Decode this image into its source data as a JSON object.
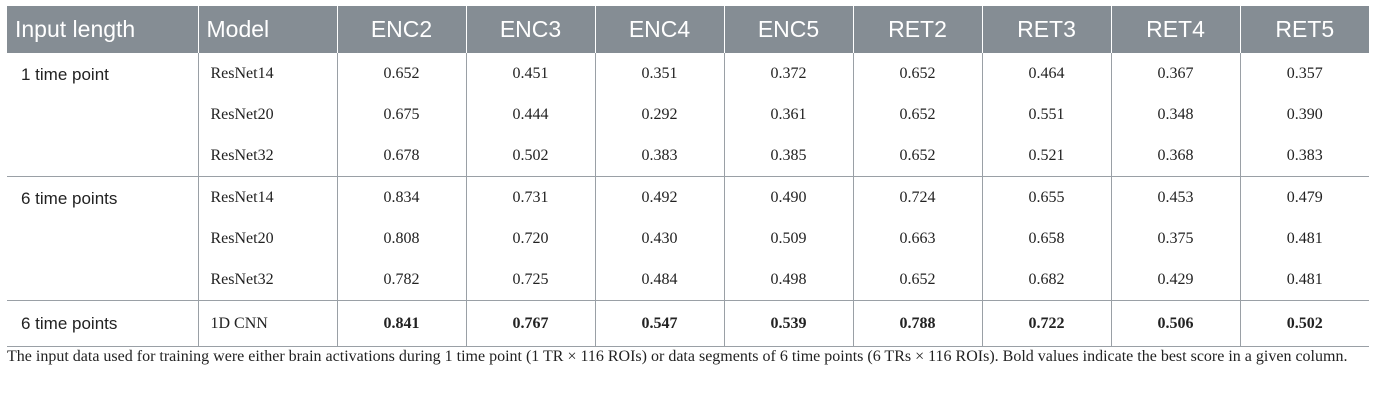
{
  "table": {
    "headers": [
      "Input length",
      "Model",
      "ENC2",
      "ENC3",
      "ENC4",
      "ENC5",
      "RET2",
      "RET3",
      "RET4",
      "RET5"
    ],
    "groups": [
      {
        "label": "1 time point",
        "rows": [
          {
            "model": "ResNet14",
            "values": [
              "0.652",
              "0.451",
              "0.351",
              "0.372",
              "0.652",
              "0.464",
              "0.367",
              "0.357"
            ]
          },
          {
            "model": "ResNet20",
            "values": [
              "0.675",
              "0.444",
              "0.292",
              "0.361",
              "0.652",
              "0.551",
              "0.348",
              "0.390"
            ]
          },
          {
            "model": "ResNet32",
            "values": [
              "0.678",
              "0.502",
              "0.383",
              "0.385",
              "0.652",
              "0.521",
              "0.368",
              "0.383"
            ]
          }
        ]
      },
      {
        "label": "6 time points",
        "rows": [
          {
            "model": "ResNet14",
            "values": [
              "0.834",
              "0.731",
              "0.492",
              "0.490",
              "0.724",
              "0.655",
              "0.453",
              "0.479"
            ]
          },
          {
            "model": "ResNet20",
            "values": [
              "0.808",
              "0.720",
              "0.430",
              "0.509",
              "0.663",
              "0.658",
              "0.375",
              "0.481"
            ]
          },
          {
            "model": "ResNet32",
            "values": [
              "0.782",
              "0.725",
              "0.484",
              "0.498",
              "0.652",
              "0.682",
              "0.429",
              "0.481"
            ]
          }
        ]
      },
      {
        "label": "6 time points",
        "rows": [
          {
            "model": "1D CNN",
            "values": [
              "0.841",
              "0.767",
              "0.547",
              "0.539",
              "0.788",
              "0.722",
              "0.506",
              "0.502"
            ],
            "bold": true
          }
        ]
      }
    ]
  },
  "caption": "The input data used for training were either brain activations during 1 time point (1 TR × 116 ROIs) or data segments of 6 time points (6 TRs × 116 ROIs). Bold values indicate the best score in a given column."
}
